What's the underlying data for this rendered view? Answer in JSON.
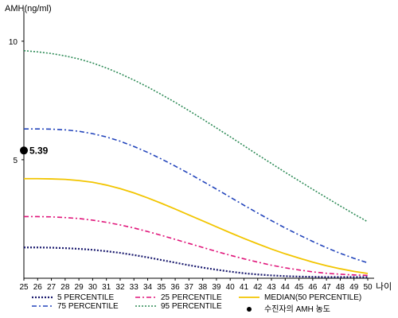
{
  "chart_data": {
    "type": "line",
    "title": "",
    "ylabel": "AMH(ng/ml)",
    "xlabel": "나이",
    "x": [
      25,
      26,
      27,
      28,
      29,
      30,
      31,
      32,
      33,
      34,
      35,
      36,
      37,
      38,
      39,
      40,
      41,
      42,
      43,
      44,
      45,
      46,
      47,
      48,
      49,
      50
    ],
    "xlim": [
      25,
      50
    ],
    "ylim": [
      0,
      11
    ],
    "yticks": [
      5,
      10
    ],
    "grid": false,
    "legend_position": "bottom",
    "series": [
      {
        "name": "5 PERCENTILE",
        "color": "#1a1a6e",
        "dash": "2,2",
        "width": 2.2,
        "values": [
          1.3,
          1.3,
          1.29,
          1.27,
          1.24,
          1.2,
          1.14,
          1.07,
          0.98,
          0.88,
          0.77,
          0.66,
          0.55,
          0.45,
          0.36,
          0.28,
          0.21,
          0.16,
          0.12,
          0.09,
          0.07,
          0.06,
          0.05,
          0.05,
          0.05,
          0.05
        ]
      },
      {
        "name": "25 PERCENTILE",
        "color": "#e0157a",
        "dash": "6,3,2,3",
        "width": 1.6,
        "values": [
          2.6,
          2.6,
          2.59,
          2.56,
          2.52,
          2.45,
          2.36,
          2.25,
          2.12,
          1.97,
          1.81,
          1.64,
          1.47,
          1.3,
          1.13,
          0.97,
          0.82,
          0.68,
          0.55,
          0.44,
          0.35,
          0.27,
          0.21,
          0.17,
          0.14,
          0.12
        ]
      },
      {
        "name": "MEDIAN(50 PERCENTILE)",
        "color": "#f2c500",
        "dash": "",
        "width": 1.8,
        "values": [
          4.2,
          4.2,
          4.19,
          4.17,
          4.12,
          4.05,
          3.93,
          3.78,
          3.6,
          3.39,
          3.16,
          2.92,
          2.67,
          2.42,
          2.17,
          1.92,
          1.68,
          1.45,
          1.23,
          1.03,
          0.85,
          0.68,
          0.53,
          0.4,
          0.29,
          0.2
        ]
      },
      {
        "name": "75 PERCENTILE",
        "color": "#2244bb",
        "dash": "6,3,2,3",
        "width": 1.6,
        "values": [
          6.3,
          6.3,
          6.29,
          6.26,
          6.2,
          6.1,
          5.96,
          5.78,
          5.56,
          5.31,
          5.03,
          4.73,
          4.42,
          4.09,
          3.76,
          3.42,
          3.08,
          2.75,
          2.43,
          2.12,
          1.83,
          1.55,
          1.29,
          1.05,
          0.84,
          0.65
        ]
      },
      {
        "name": "95 PERCENTILE",
        "color": "#2e8b57",
        "dash": "2,2",
        "width": 1.6,
        "values": [
          9.6,
          9.55,
          9.48,
          9.38,
          9.25,
          9.08,
          8.87,
          8.63,
          8.36,
          8.07,
          7.75,
          7.42,
          7.07,
          6.71,
          6.34,
          5.97,
          5.59,
          5.21,
          4.84,
          4.47,
          4.11,
          3.75,
          3.4,
          3.05,
          2.71,
          2.38
        ]
      }
    ],
    "patient": {
      "name": "수진자의 AMH 농도",
      "x": 25,
      "value": 5.39,
      "label": "5.39",
      "color": "#000000"
    }
  }
}
